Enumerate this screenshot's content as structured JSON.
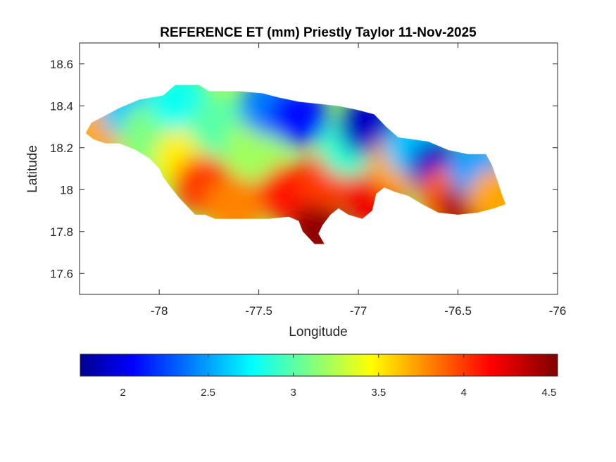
{
  "chart_data": {
    "type": "heatmap",
    "title": "REFERENCE ET (mm) Priestly Taylor 11-Nov-2025",
    "xlabel": "Longitude",
    "ylabel": "Latitude",
    "xlim": [
      -78.4,
      -76
    ],
    "ylim": [
      17.5,
      18.7
    ],
    "x_ticks": [
      -78,
      -77.5,
      -77,
      -76.5,
      -76
    ],
    "x_tick_labels": [
      "-78",
      "-77.5",
      "-77",
      "-76.5",
      "-76"
    ],
    "y_ticks": [
      17.6,
      17.8,
      18,
      18.2,
      18.4,
      18.6
    ],
    "y_tick_labels": [
      "17.6",
      "17.8",
      "18",
      "18.2",
      "18.4",
      "18.6"
    ],
    "grid": false,
    "colormap": "jet",
    "colormap_stops": [
      "#00008f",
      "#0000ff",
      "#00ffff",
      "#ffff00",
      "#ff0000",
      "#800000"
    ],
    "colorbar": {
      "orientation": "horizontal",
      "placement": "bottom",
      "range": [
        1.75,
        4.55
      ],
      "ticks": [
        2,
        2.5,
        3,
        3.5,
        4,
        4.5
      ],
      "tick_labels": [
        "2",
        "2.5",
        "3",
        "3.5",
        "4",
        "4.5"
      ]
    },
    "region_outline": [
      [
        -78.37,
        18.27
      ],
      [
        -78.34,
        18.32
      ],
      [
        -78.28,
        18.35
      ],
      [
        -78.2,
        18.39
      ],
      [
        -78.1,
        18.43
      ],
      [
        -77.98,
        18.45
      ],
      [
        -77.92,
        18.5
      ],
      [
        -77.8,
        18.5
      ],
      [
        -77.75,
        18.47
      ],
      [
        -77.6,
        18.47
      ],
      [
        -77.48,
        18.46
      ],
      [
        -77.4,
        18.44
      ],
      [
        -77.3,
        18.42
      ],
      [
        -77.2,
        18.41
      ],
      [
        -77.1,
        18.4
      ],
      [
        -77.0,
        18.38
      ],
      [
        -76.92,
        18.36
      ],
      [
        -76.86,
        18.3
      ],
      [
        -76.8,
        18.25
      ],
      [
        -76.65,
        18.23
      ],
      [
        -76.55,
        18.19
      ],
      [
        -76.45,
        18.17
      ],
      [
        -76.36,
        18.17
      ],
      [
        -76.33,
        18.12
      ],
      [
        -76.3,
        18.04
      ],
      [
        -76.28,
        17.98
      ],
      [
        -76.26,
        17.93
      ],
      [
        -76.32,
        17.91
      ],
      [
        -76.4,
        17.89
      ],
      [
        -76.5,
        17.88
      ],
      [
        -76.6,
        17.89
      ],
      [
        -76.68,
        17.93
      ],
      [
        -76.75,
        17.97
      ],
      [
        -76.82,
        17.99
      ],
      [
        -76.87,
        18.01
      ],
      [
        -76.91,
        17.98
      ],
      [
        -76.93,
        17.9
      ],
      [
        -76.98,
        17.86
      ],
      [
        -77.05,
        17.88
      ],
      [
        -77.1,
        17.91
      ],
      [
        -77.14,
        17.88
      ],
      [
        -77.18,
        17.83
      ],
      [
        -77.2,
        17.79
      ],
      [
        -77.17,
        17.74
      ],
      [
        -77.22,
        17.74
      ],
      [
        -77.28,
        17.8
      ],
      [
        -77.3,
        17.85
      ],
      [
        -77.35,
        17.87
      ],
      [
        -77.45,
        17.86
      ],
      [
        -77.55,
        17.86
      ],
      [
        -77.65,
        17.86
      ],
      [
        -77.72,
        17.86
      ],
      [
        -77.77,
        17.88
      ],
      [
        -77.82,
        17.88
      ],
      [
        -77.86,
        17.92
      ],
      [
        -77.9,
        17.96
      ],
      [
        -77.95,
        18.02
      ],
      [
        -77.98,
        18.06
      ],
      [
        -78.0,
        18.1
      ],
      [
        -78.05,
        18.15
      ],
      [
        -78.12,
        18.19
      ],
      [
        -78.2,
        18.22
      ],
      [
        -78.27,
        18.22
      ],
      [
        -78.33,
        18.24
      ]
    ],
    "value_centers": [
      {
        "lon": -78.3,
        "lat": 18.28,
        "value": 3.7
      },
      {
        "lon": -78.15,
        "lat": 18.38,
        "value": 2.6
      },
      {
        "lon": -78.05,
        "lat": 18.27,
        "value": 3.1
      },
      {
        "lon": -77.9,
        "lat": 18.42,
        "value": 2.8
      },
      {
        "lon": -77.88,
        "lat": 18.15,
        "value": 3.5
      },
      {
        "lon": -77.78,
        "lat": 18.02,
        "value": 4.0
      },
      {
        "lon": -77.7,
        "lat": 18.3,
        "value": 3.0
      },
      {
        "lon": -77.62,
        "lat": 17.92,
        "value": 3.8
      },
      {
        "lon": -77.52,
        "lat": 18.2,
        "value": 3.2
      },
      {
        "lon": -77.45,
        "lat": 18.4,
        "value": 2.4
      },
      {
        "lon": -77.35,
        "lat": 17.98,
        "value": 4.1
      },
      {
        "lon": -77.3,
        "lat": 18.35,
        "value": 2.1
      },
      {
        "lon": -77.2,
        "lat": 17.8,
        "value": 4.5
      },
      {
        "lon": -77.15,
        "lat": 18.05,
        "value": 4.0
      },
      {
        "lon": -77.05,
        "lat": 18.2,
        "value": 2.9
      },
      {
        "lon": -76.95,
        "lat": 18.3,
        "value": 1.9
      },
      {
        "lon": -76.92,
        "lat": 17.95,
        "value": 4.2
      },
      {
        "lon": -76.8,
        "lat": 18.12,
        "value": 3.7
      },
      {
        "lon": -76.72,
        "lat": 18.2,
        "value": 2.6
      },
      {
        "lon": -76.6,
        "lat": 18.1,
        "value": 1.9
      },
      {
        "lon": -76.55,
        "lat": 17.97,
        "value": 3.9
      },
      {
        "lon": -76.45,
        "lat": 17.91,
        "value": 4.4
      },
      {
        "lon": -76.4,
        "lat": 18.1,
        "value": 2.5
      },
      {
        "lon": -76.3,
        "lat": 17.96,
        "value": 3.7
      }
    ]
  }
}
